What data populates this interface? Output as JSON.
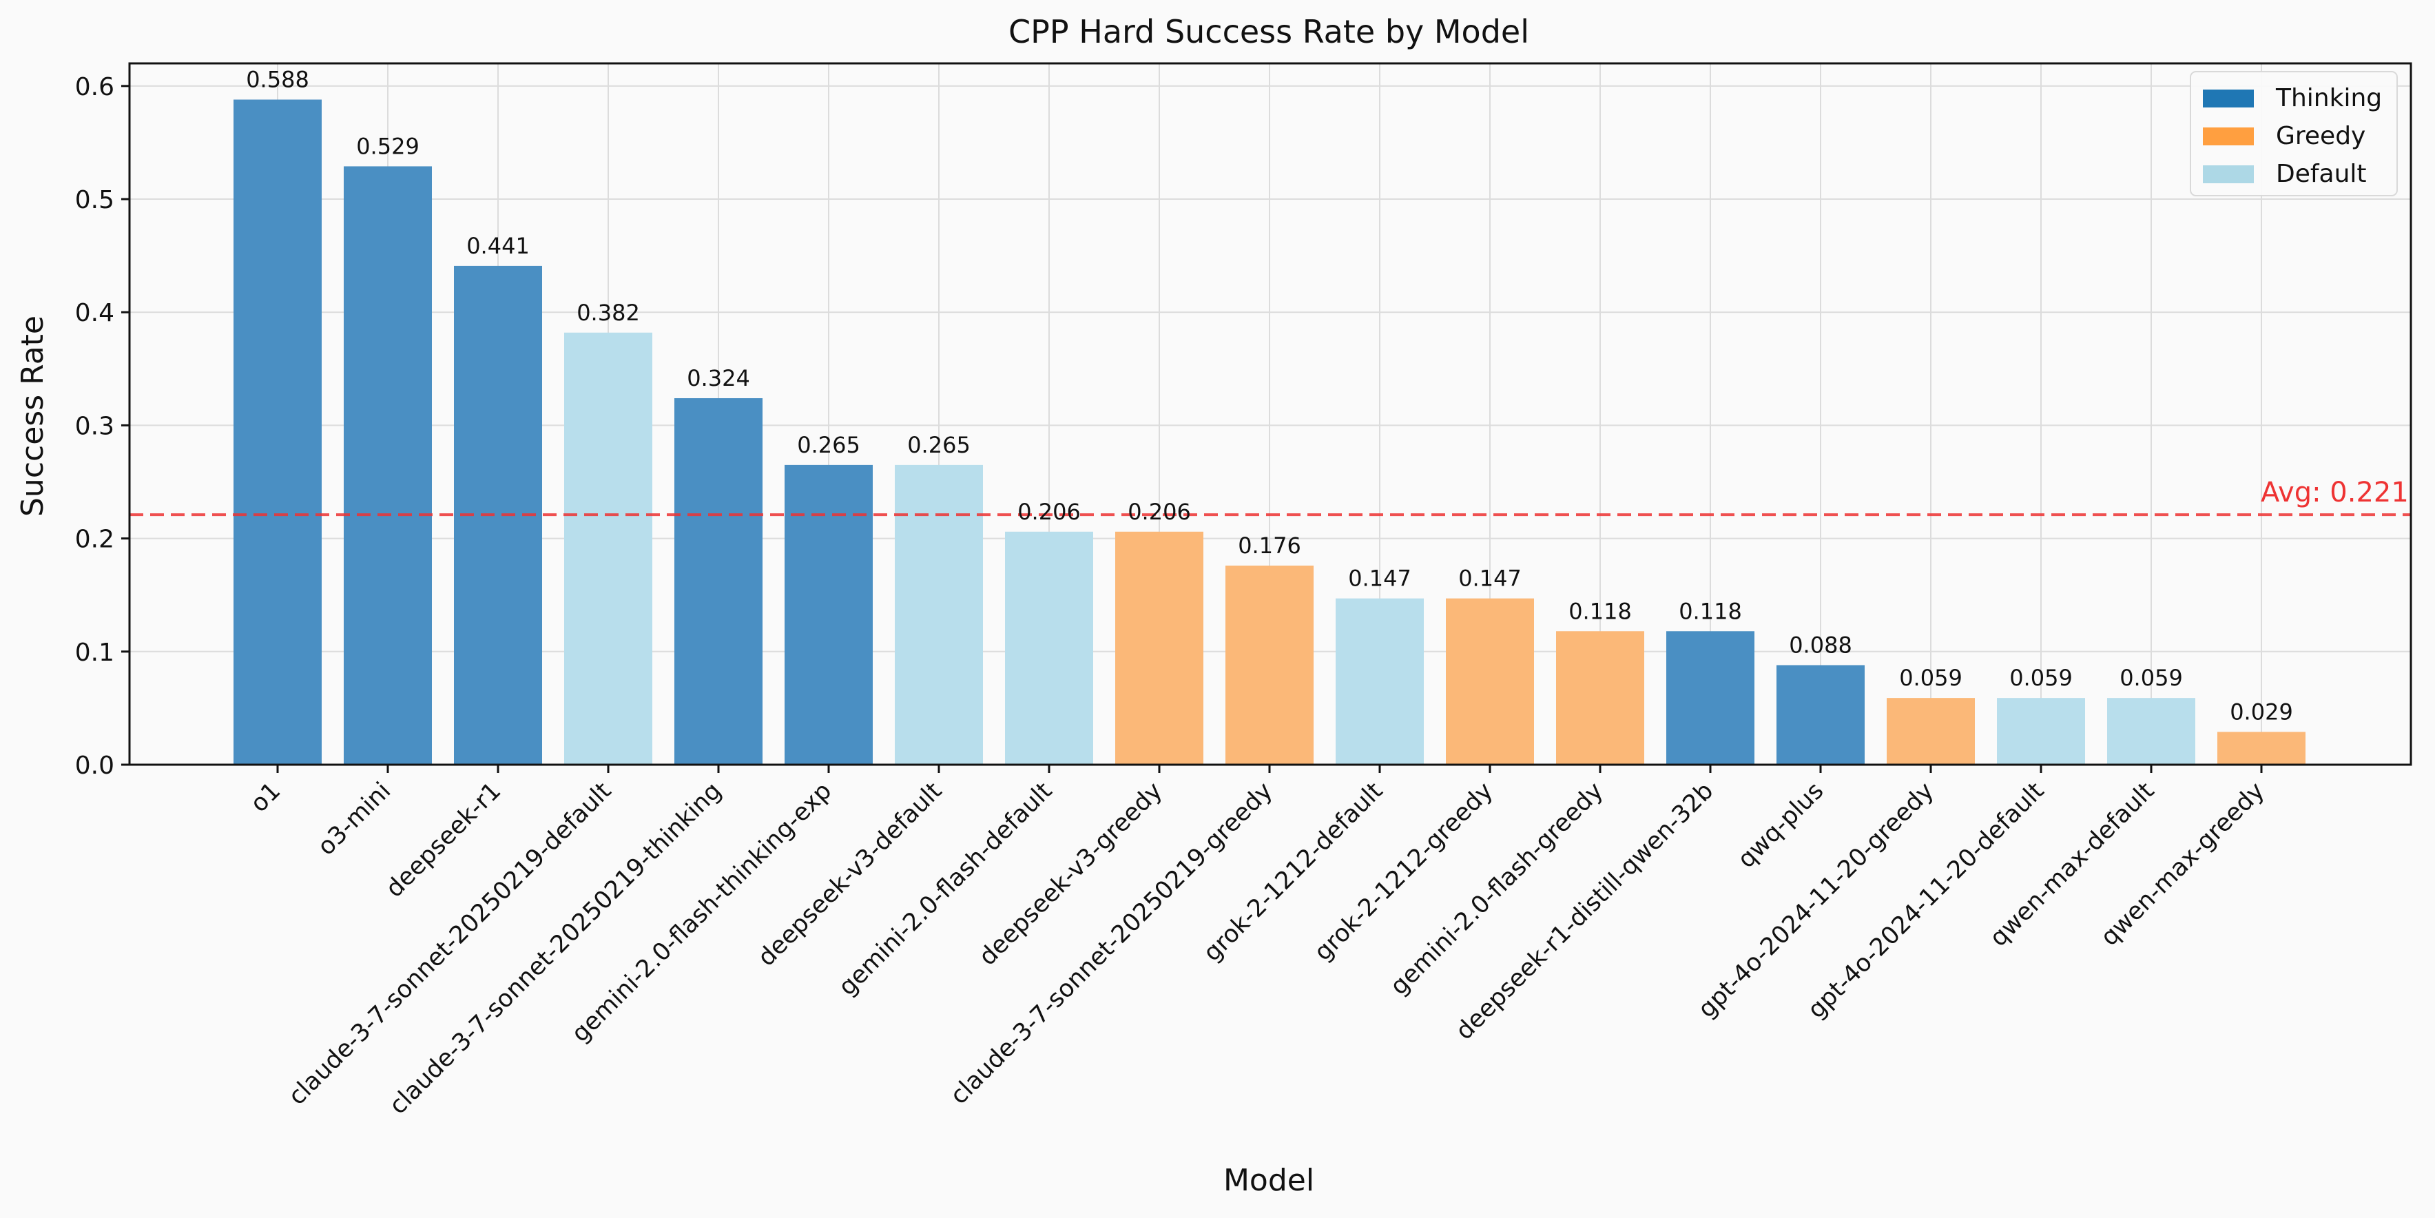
{
  "chart_data": {
    "type": "bar",
    "title": "CPP Hard Success Rate by Model",
    "xlabel": "Model",
    "ylabel": "Success Rate",
    "ylim": [
      0,
      0.62
    ],
    "yticks": [
      "0.0",
      "0.1",
      "0.2",
      "0.3",
      "0.4",
      "0.5",
      "0.6"
    ],
    "grid": true,
    "legend_position": "top-right",
    "categories": [
      "o1",
      "o3-mini",
      "deepseek-r1",
      "claude-3-7-sonnet-20250219-default",
      "claude-3-7-sonnet-20250219-thinking",
      "gemini-2.0-flash-thinking-exp",
      "deepseek-v3-default",
      "gemini-2.0-flash-default",
      "deepseek-v3-greedy",
      "claude-3-7-sonnet-20250219-greedy",
      "grok-2-1212-default",
      "grok-2-1212-greedy",
      "gemini-2.0-flash-greedy",
      "deepseek-r1-distill-qwen-32b",
      "qwq-plus",
      "gpt-4o-2024-11-20-greedy",
      "gpt-4o-2024-11-20-default",
      "qwen-max-default",
      "qwen-max-greedy"
    ],
    "values": [
      0.588,
      0.529,
      0.441,
      0.382,
      0.324,
      0.265,
      0.265,
      0.206,
      0.206,
      0.176,
      0.147,
      0.147,
      0.118,
      0.118,
      0.088,
      0.059,
      0.059,
      0.059,
      0.029
    ],
    "value_labels": [
      "0.588",
      "0.529",
      "0.441",
      "0.382",
      "0.324",
      "0.265",
      "0.265",
      "0.206",
      "0.206",
      "0.176",
      "0.147",
      "0.147",
      "0.118",
      "0.118",
      "0.088",
      "0.059",
      "0.059",
      "0.059",
      "0.029"
    ],
    "bar_groups": [
      "thinking",
      "thinking",
      "thinking",
      "default",
      "thinking",
      "thinking",
      "default",
      "default",
      "greedy",
      "greedy",
      "default",
      "greedy",
      "greedy",
      "thinking",
      "thinking",
      "greedy",
      "default",
      "default",
      "greedy"
    ],
    "legend": [
      {
        "key": "thinking",
        "label": "Thinking",
        "color": "#1f77b4"
      },
      {
        "key": "greedy",
        "label": "Greedy",
        "color": "#ff9f40"
      },
      {
        "key": "default",
        "label": "Default",
        "color": "#add8e6"
      }
    ],
    "bar_colors": {
      "thinking": "#4a8fc3",
      "greedy": "#fbb878",
      "default": "#b8deec"
    },
    "average": {
      "value": 0.221,
      "label": "Avg: 0.221",
      "color": "#ee3333"
    }
  }
}
